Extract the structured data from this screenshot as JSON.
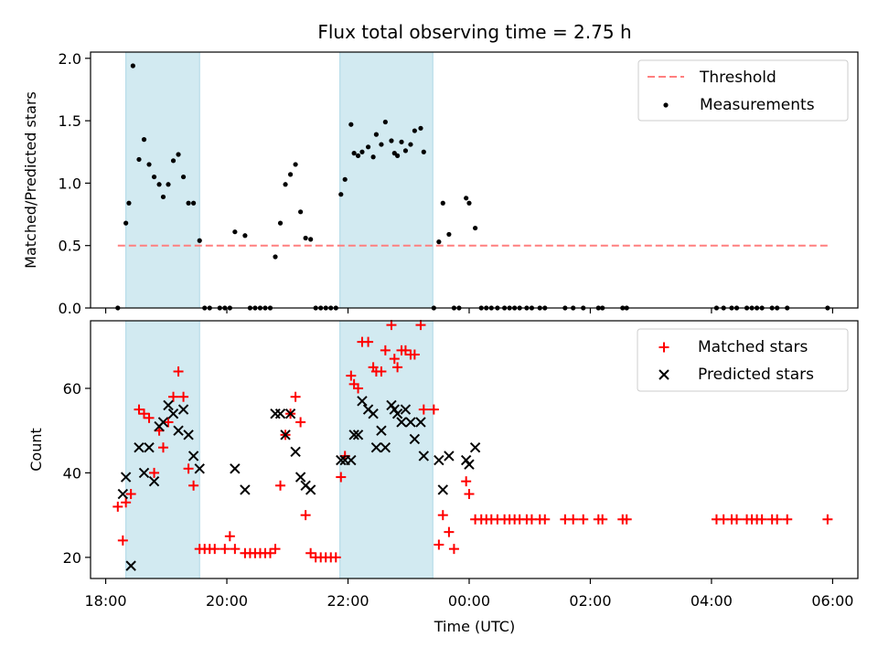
{
  "title": "Flux total observing time = 2.75 h",
  "colors": {
    "threshold": "#ff7f7f",
    "measurements": "#000000",
    "matched": "#ff0000",
    "predicted": "#000000",
    "shade": "#add8e6"
  },
  "chart_data": [
    {
      "type": "scatter",
      "panel": "top",
      "ylabel": "Matched/Predicted stars",
      "xlabel": "",
      "xlim": [
        "17:45",
        "06:25"
      ],
      "ylim": [
        0,
        2.05
      ],
      "yticks": [
        0.0,
        0.5,
        1.0,
        1.5,
        2.0
      ],
      "ytick_labels": [
        "0.0",
        "0.5",
        "1.0",
        "1.5",
        "2.0"
      ],
      "legend_position": "upper right",
      "shaded_intervals": [
        [
          "18:20",
          "19:33"
        ],
        [
          "21:52",
          "23:24"
        ]
      ],
      "series": [
        {
          "name": "Threshold",
          "kind": "dashed-line",
          "x": [
            "18:12",
            "05:57"
          ],
          "y": [
            0.5,
            0.5
          ]
        },
        {
          "name": "Measurements",
          "kind": "dot",
          "points": [
            [
              "18:12",
              0
            ],
            [
              "18:20",
              0.68
            ],
            [
              "18:23",
              0.84
            ],
            [
              "18:27",
              1.94
            ],
            [
              "18:33",
              1.19
            ],
            [
              "18:38",
              1.35
            ],
            [
              "18:43",
              1.15
            ],
            [
              "18:48",
              1.05
            ],
            [
              "18:53",
              0.99
            ],
            [
              "18:57",
              0.89
            ],
            [
              "19:02",
              0.99
            ],
            [
              "19:07",
              1.18
            ],
            [
              "19:12",
              1.23
            ],
            [
              "19:17",
              1.05
            ],
            [
              "19:22",
              0.84
            ],
            [
              "19:27",
              0.84
            ],
            [
              "19:33",
              0.54
            ],
            [
              "19:38",
              0
            ],
            [
              "19:43",
              0
            ],
            [
              "19:53",
              0
            ],
            [
              "19:58",
              0
            ],
            [
              "20:03",
              0
            ],
            [
              "20:08",
              0.61
            ],
            [
              "20:18",
              0.58
            ],
            [
              "20:23",
              0
            ],
            [
              "20:28",
              0
            ],
            [
              "20:33",
              0
            ],
            [
              "20:38",
              0
            ],
            [
              "20:43",
              0
            ],
            [
              "20:48",
              0.41
            ],
            [
              "20:53",
              0.68
            ],
            [
              "20:58",
              0.99
            ],
            [
              "21:03",
              1.07
            ],
            [
              "21:08",
              1.15
            ],
            [
              "21:13",
              0.77
            ],
            [
              "21:18",
              0.56
            ],
            [
              "21:23",
              0.55
            ],
            [
              "21:28",
              0
            ],
            [
              "21:33",
              0
            ],
            [
              "21:38",
              0
            ],
            [
              "21:43",
              0
            ],
            [
              "21:48",
              0
            ],
            [
              "21:53",
              0.91
            ],
            [
              "21:57",
              1.03
            ],
            [
              "22:03",
              1.47
            ],
            [
              "22:06",
              1.24
            ],
            [
              "22:10",
              1.22
            ],
            [
              "22:14",
              1.25
            ],
            [
              "22:20",
              1.29
            ],
            [
              "22:25",
              1.21
            ],
            [
              "22:28",
              1.39
            ],
            [
              "22:33",
              1.31
            ],
            [
              "22:37",
              1.49
            ],
            [
              "22:43",
              1.34
            ],
            [
              "22:46",
              1.24
            ],
            [
              "22:49",
              1.22
            ],
            [
              "22:53",
              1.33
            ],
            [
              "22:57",
              1.26
            ],
            [
              "23:02",
              1.31
            ],
            [
              "23:06",
              1.42
            ],
            [
              "23:12",
              1.44
            ],
            [
              "23:15",
              1.25
            ],
            [
              "23:25",
              0
            ],
            [
              "23:30",
              0.53
            ],
            [
              "23:34",
              0.84
            ],
            [
              "23:40",
              0.59
            ],
            [
              "23:45",
              0
            ],
            [
              "23:50",
              0
            ],
            [
              "23:57",
              0.88
            ],
            [
              "24:00",
              0.84
            ],
            [
              "24:06",
              0.64
            ],
            [
              "24:12",
              0
            ],
            [
              "24:17",
              0
            ],
            [
              "24:22",
              0
            ],
            [
              "24:28",
              0
            ],
            [
              "24:35",
              0
            ],
            [
              "24:40",
              0
            ],
            [
              "24:45",
              0
            ],
            [
              "24:50",
              0
            ],
            [
              "24:57",
              0
            ],
            [
              "25:02",
              0
            ],
            [
              "25:10",
              0
            ],
            [
              "25:15",
              0
            ],
            [
              "25:35",
              0
            ],
            [
              "25:43",
              0
            ],
            [
              "25:53",
              0
            ],
            [
              "26:08",
              0
            ],
            [
              "26:12",
              0
            ],
            [
              "26:32",
              0
            ],
            [
              "26:36",
              0
            ],
            [
              "28:05",
              0
            ],
            [
              "28:12",
              0
            ],
            [
              "28:20",
              0
            ],
            [
              "28:25",
              0
            ],
            [
              "28:35",
              0
            ],
            [
              "28:40",
              0
            ],
            [
              "28:45",
              0
            ],
            [
              "28:50",
              0
            ],
            [
              "29:00",
              0
            ],
            [
              "29:05",
              0
            ],
            [
              "29:15",
              0
            ],
            [
              "29:55",
              0
            ]
          ]
        }
      ]
    },
    {
      "type": "scatter",
      "panel": "bottom",
      "xlabel": "Time (UTC)",
      "ylabel": "Count",
      "xlim": [
        "17:45",
        "06:25"
      ],
      "ylim": [
        15,
        76
      ],
      "yticks": [
        20,
        40,
        60
      ],
      "ytick_labels": [
        "20",
        "40",
        "60"
      ],
      "xticks": [
        "18:00",
        "20:00",
        "22:00",
        "00:00",
        "02:00",
        "04:00",
        "06:00"
      ],
      "legend_position": "upper right",
      "shaded_intervals": [
        [
          "18:20",
          "19:33"
        ],
        [
          "21:52",
          "23:24"
        ]
      ],
      "series": [
        {
          "name": "Matched stars",
          "marker": "+",
          "points": [
            [
              "18:12",
              32
            ],
            [
              "18:17",
              24
            ],
            [
              "18:20",
              33
            ],
            [
              "18:25",
              35
            ],
            [
              "18:33",
              55
            ],
            [
              "18:38",
              54
            ],
            [
              "18:43",
              53
            ],
            [
              "18:48",
              40
            ],
            [
              "18:53",
              50
            ],
            [
              "18:57",
              46
            ],
            [
              "19:02",
              52
            ],
            [
              "19:07",
              58
            ],
            [
              "19:12",
              64
            ],
            [
              "19:17",
              58
            ],
            [
              "19:22",
              41
            ],
            [
              "19:27",
              37
            ],
            [
              "19:33",
              22
            ],
            [
              "19:38",
              22
            ],
            [
              "19:43",
              22
            ],
            [
              "19:48",
              22
            ],
            [
              "19:58",
              22
            ],
            [
              "20:03",
              25
            ],
            [
              "20:08",
              22
            ],
            [
              "20:18",
              21
            ],
            [
              "20:23",
              21
            ],
            [
              "20:28",
              21
            ],
            [
              "20:33",
              21
            ],
            [
              "20:38",
              21
            ],
            [
              "20:43",
              21
            ],
            [
              "20:48",
              22
            ],
            [
              "20:53",
              37
            ],
            [
              "20:58",
              49
            ],
            [
              "21:03",
              54
            ],
            [
              "21:08",
              58
            ],
            [
              "21:13",
              52
            ],
            [
              "21:18",
              30
            ],
            [
              "21:23",
              21
            ],
            [
              "21:28",
              20
            ],
            [
              "21:33",
              20
            ],
            [
              "21:38",
              20
            ],
            [
              "21:43",
              20
            ],
            [
              "21:48",
              20
            ],
            [
              "21:53",
              39
            ],
            [
              "21:57",
              44
            ],
            [
              "22:03",
              63
            ],
            [
              "22:06",
              61
            ],
            [
              "22:10",
              60
            ],
            [
              "22:14",
              71
            ],
            [
              "22:20",
              71
            ],
            [
              "22:25",
              65
            ],
            [
              "22:28",
              64
            ],
            [
              "22:33",
              64
            ],
            [
              "22:37",
              69
            ],
            [
              "22:43",
              75
            ],
            [
              "22:46",
              67
            ],
            [
              "22:49",
              65
            ],
            [
              "22:53",
              69
            ],
            [
              "22:57",
              69
            ],
            [
              "23:02",
              68
            ],
            [
              "23:06",
              68
            ],
            [
              "23:12",
              75
            ],
            [
              "23:15",
              55
            ],
            [
              "23:25",
              55
            ],
            [
              "23:30",
              23
            ],
            [
              "23:34",
              30
            ],
            [
              "23:40",
              26
            ],
            [
              "23:45",
              22
            ],
            [
              "23:57",
              38
            ],
            [
              "24:00",
              35
            ],
            [
              "24:06",
              29
            ],
            [
              "24:12",
              29
            ],
            [
              "24:17",
              29
            ],
            [
              "24:22",
              29
            ],
            [
              "24:28",
              29
            ],
            [
              "24:35",
              29
            ],
            [
              "24:40",
              29
            ],
            [
              "24:45",
              29
            ],
            [
              "24:50",
              29
            ],
            [
              "24:57",
              29
            ],
            [
              "25:02",
              29
            ],
            [
              "25:10",
              29
            ],
            [
              "25:15",
              29
            ],
            [
              "25:35",
              29
            ],
            [
              "25:43",
              29
            ],
            [
              "25:53",
              29
            ],
            [
              "26:08",
              29
            ],
            [
              "26:12",
              29
            ],
            [
              "26:32",
              29
            ],
            [
              "26:36",
              29
            ],
            [
              "28:05",
              29
            ],
            [
              "28:12",
              29
            ],
            [
              "28:20",
              29
            ],
            [
              "28:25",
              29
            ],
            [
              "28:35",
              29
            ],
            [
              "28:40",
              29
            ],
            [
              "28:45",
              29
            ],
            [
              "28:50",
              29
            ],
            [
              "29:00",
              29
            ],
            [
              "29:05",
              29
            ],
            [
              "29:15",
              29
            ],
            [
              "29:55",
              29
            ]
          ]
        },
        {
          "name": "Predicted stars",
          "marker": "x",
          "points": [
            [
              "18:17",
              35
            ],
            [
              "18:20",
              39
            ],
            [
              "18:25",
              18
            ],
            [
              "18:33",
              46
            ],
            [
              "18:38",
              40
            ],
            [
              "18:43",
              46
            ],
            [
              "18:48",
              38
            ],
            [
              "18:53",
              51
            ],
            [
              "18:57",
              52
            ],
            [
              "19:02",
              56
            ],
            [
              "19:07",
              54
            ],
            [
              "19:12",
              50
            ],
            [
              "19:17",
              55
            ],
            [
              "19:22",
              49
            ],
            [
              "19:27",
              44
            ],
            [
              "19:33",
              41
            ],
            [
              "20:08",
              41
            ],
            [
              "20:18",
              36
            ],
            [
              "20:48",
              54
            ],
            [
              "20:53",
              54
            ],
            [
              "20:58",
              49
            ],
            [
              "21:03",
              54
            ],
            [
              "21:08",
              45
            ],
            [
              "21:13",
              39
            ],
            [
              "21:18",
              37
            ],
            [
              "21:23",
              36
            ],
            [
              "21:53",
              43
            ],
            [
              "21:57",
              43
            ],
            [
              "22:03",
              43
            ],
            [
              "22:06",
              49
            ],
            [
              "22:10",
              49
            ],
            [
              "22:14",
              57
            ],
            [
              "22:20",
              55
            ],
            [
              "22:25",
              54
            ],
            [
              "22:28",
              46
            ],
            [
              "22:33",
              50
            ],
            [
              "22:37",
              46
            ],
            [
              "22:43",
              56
            ],
            [
              "22:46",
              55
            ],
            [
              "22:49",
              54
            ],
            [
              "22:53",
              52
            ],
            [
              "22:57",
              55
            ],
            [
              "23:02",
              52
            ],
            [
              "23:06",
              48
            ],
            [
              "23:12",
              52
            ],
            [
              "23:15",
              44
            ],
            [
              "23:30",
              43
            ],
            [
              "23:34",
              36
            ],
            [
              "23:40",
              44
            ],
            [
              "23:57",
              43
            ],
            [
              "24:00",
              42
            ],
            [
              "24:06",
              46
            ]
          ]
        }
      ]
    }
  ]
}
